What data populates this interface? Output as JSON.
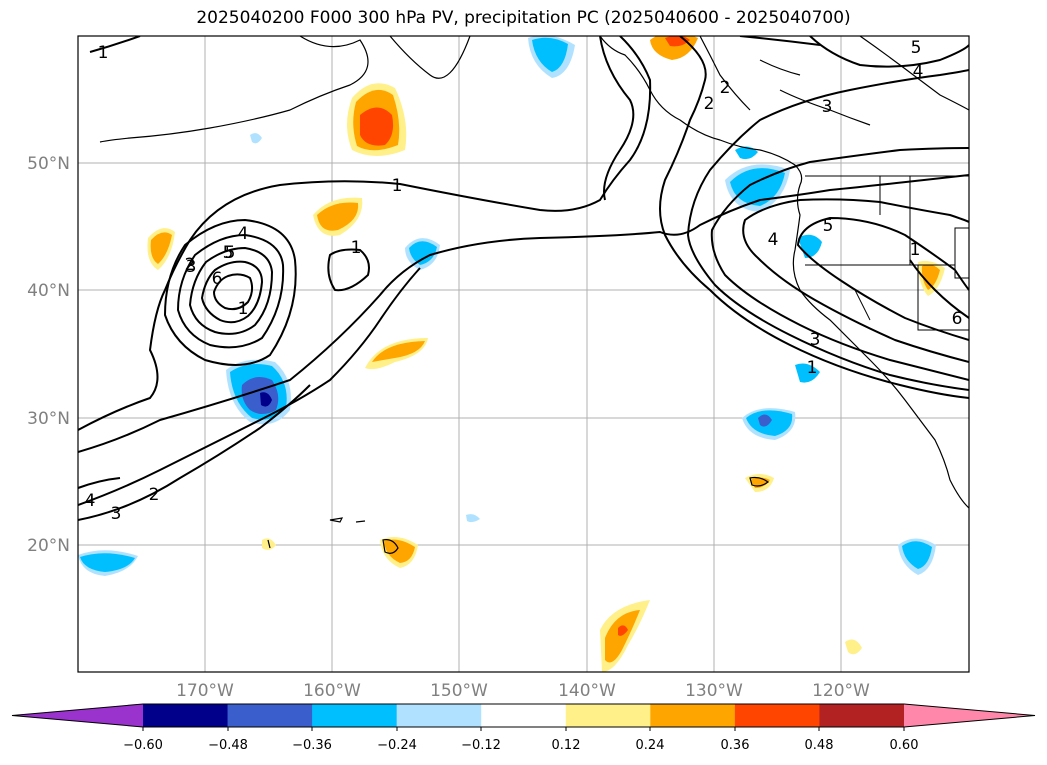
{
  "title": "2025040200 F000 300 hPa PV, precipitation PC (2025040600 - 2025040700)",
  "lat_ticks": [
    "50°N",
    "40°N",
    "30°N",
    "20°N"
  ],
  "lon_ticks": [
    "170°W",
    "160°W",
    "150°W",
    "140°W",
    "130°W",
    "120°W"
  ],
  "colorbar": {
    "ticks": [
      "−0.60",
      "−0.48",
      "−0.36",
      "−0.24",
      "−0.12",
      "0.12",
      "0.24",
      "0.36",
      "0.48",
      "0.60"
    ],
    "colors": [
      "#9a32cd",
      "#00008b",
      "#3a5fcd",
      "#00bfff",
      "#b0e2ff",
      "#ffffff",
      "#fff08a",
      "#ffa500",
      "#ff4500",
      "#b22222",
      "#ff88aa"
    ]
  },
  "contour_labels": [
    "1",
    "1",
    "2",
    "2",
    "3",
    "4",
    "5",
    "1",
    "1",
    "2",
    "3",
    "4",
    "5",
    "6",
    "1",
    "3",
    "4",
    "5",
    "5",
    "6",
    "4",
    "3",
    "2",
    "1"
  ]
}
